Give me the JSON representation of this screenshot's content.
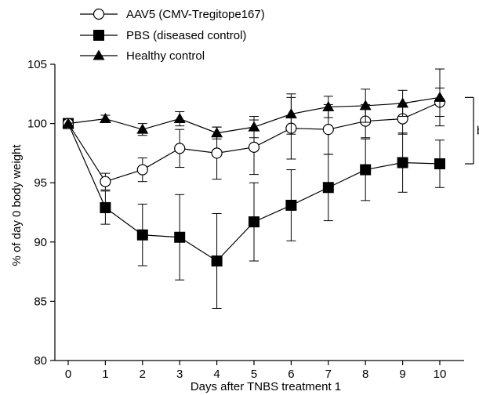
{
  "chart_data": {
    "type": "line",
    "title": "",
    "xlabel": "Days after TNBS treatment 1",
    "ylabel": "% of day 0 body weight",
    "xlim": [
      0,
      10
    ],
    "ylim": [
      80,
      105
    ],
    "x_ticks": [
      "0",
      "1",
      "2",
      "3",
      "4",
      "5",
      "6",
      "7",
      "8",
      "9",
      "10"
    ],
    "y_ticks": [
      "80",
      "85",
      "90",
      "95",
      "100",
      "105"
    ],
    "grid": false,
    "legend_position": "top-left",
    "x": [
      0,
      1,
      2,
      3,
      4,
      5,
      6,
      7,
      8,
      9,
      10
    ],
    "series": [
      {
        "name": "AAV5 (CMV-Tregitope167)",
        "marker": "open-circle",
        "values": [
          100,
          95.1,
          96.1,
          97.9,
          97.5,
          98.0,
          99.6,
          99.5,
          100.2,
          100.4,
          101.8
        ],
        "errors": [
          0,
          0.7,
          1.0,
          1.6,
          2.2,
          2.3,
          2.6,
          2.1,
          1.4,
          1.3,
          1.2
        ]
      },
      {
        "name": "PBS (diseased control)",
        "marker": "filled-square",
        "values": [
          100,
          92.9,
          90.6,
          90.4,
          88.4,
          91.7,
          93.1,
          94.6,
          96.1,
          96.7,
          96.6
        ],
        "errors": [
          0,
          1.4,
          2.6,
          3.6,
          4.0,
          3.3,
          3.0,
          2.8,
          2.6,
          2.5,
          2.0
        ]
      },
      {
        "name": "Healthy control",
        "marker": "filled-triangle",
        "values": [
          100,
          100.4,
          99.5,
          100.4,
          99.2,
          99.7,
          100.8,
          101.4,
          101.5,
          101.7,
          102.2
        ],
        "errors": [
          0,
          0.3,
          0.5,
          0.6,
          0.5,
          0.9,
          1.7,
          0.9,
          1.4,
          1.1,
          2.4
        ]
      }
    ],
    "annotation": {
      "text": "b",
      "y_top": 102.2,
      "y_bottom": 96.6
    }
  }
}
